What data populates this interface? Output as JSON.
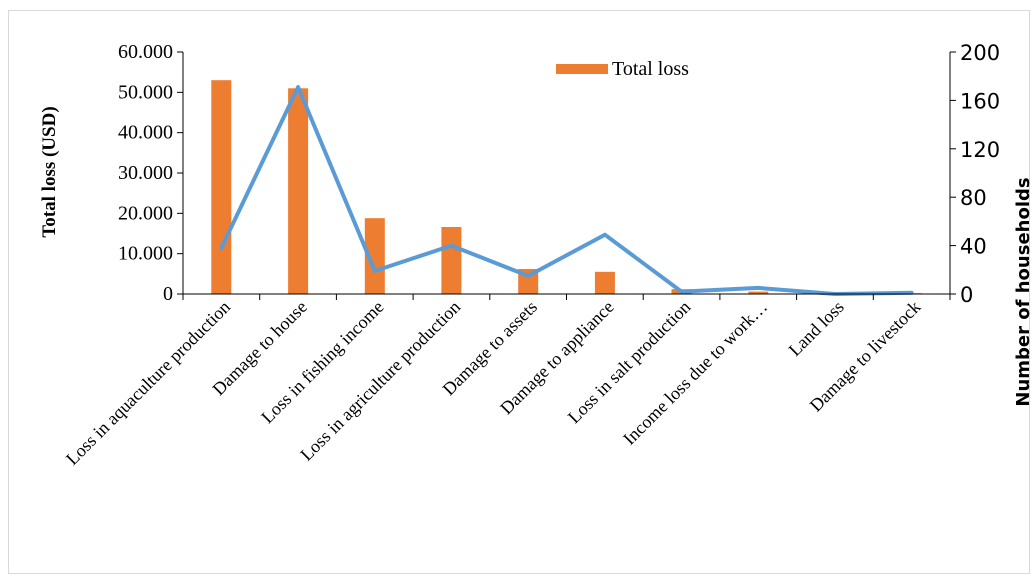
{
  "chart_data": {
    "type": "bar",
    "categories": [
      "Loss in aquaculture production",
      "Damage to house",
      "Loss in fishing income",
      "Loss in agriculture production",
      "Damage to assets",
      "Damage to appliance",
      "Loss in salt production",
      "Income loss due to work…",
      "Land loss",
      "Damage to livestock"
    ],
    "series": [
      {
        "name": "Total loss",
        "kind": "bar",
        "axis": "left",
        "color": "#ED7D31",
        "values": [
          53000,
          51000,
          18800,
          16600,
          6200,
          5500,
          1200,
          600,
          100,
          200
        ]
      },
      {
        "kind": "line",
        "axis": "right",
        "color": "#5B9BD5",
        "values": [
          38,
          171,
          19,
          40,
          15,
          49,
          2,
          5,
          0,
          1
        ]
      }
    ],
    "ylabel": "Total loss (USD)",
    "ylabel_right": "Number of households",
    "ylim": [
      0,
      60000
    ],
    "ylim_right": [
      0,
      200
    ],
    "yticks": [
      "0",
      "10.000",
      "20.000",
      "30.000",
      "40.000",
      "50.000",
      "60.000"
    ],
    "yticks_right": [
      "0",
      "40",
      "80",
      "120",
      "160",
      "200"
    ],
    "legend_label": "Total loss",
    "legend": "top-center",
    "grid": false
  }
}
